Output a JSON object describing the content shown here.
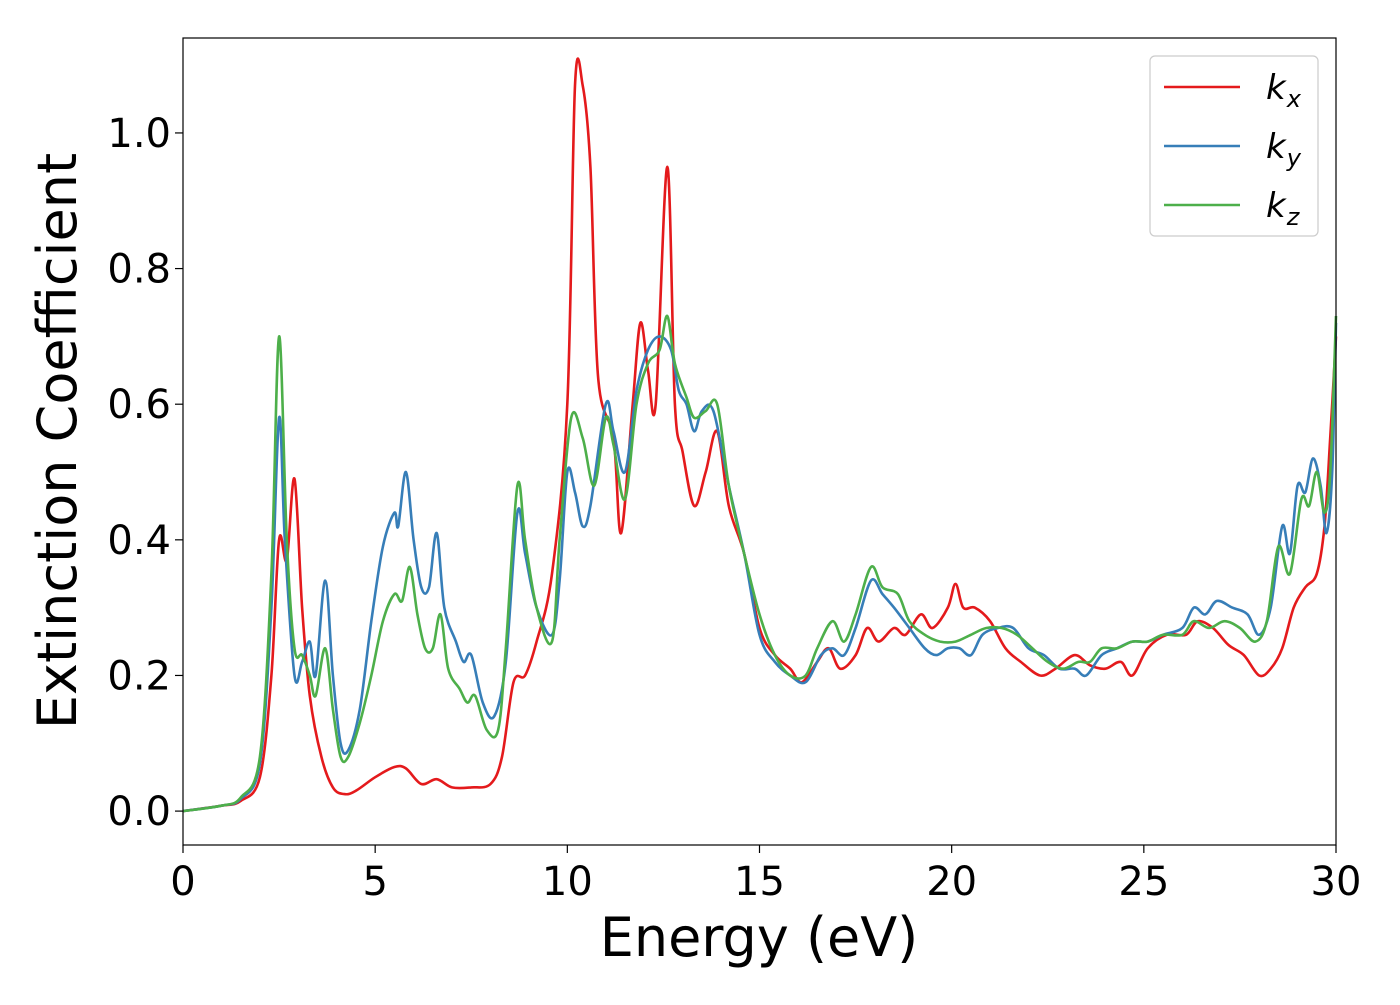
{
  "chart_data": {
    "type": "line",
    "title": "",
    "xlabel": "Energy (eV)",
    "ylabel": "Extinction Coefficient",
    "xlim": [
      0,
      30
    ],
    "ylim": [
      -0.05,
      1.14
    ],
    "xticks": [
      0,
      5,
      10,
      15,
      20,
      25,
      30
    ],
    "xtick_labels": [
      "0",
      "5",
      "10",
      "15",
      "20",
      "25",
      "30"
    ],
    "yticks": [
      0.0,
      0.2,
      0.4,
      0.6,
      0.8,
      1.0
    ],
    "ytick_labels": [
      "0.0",
      "0.2",
      "0.4",
      "0.6",
      "0.8",
      "1.0"
    ],
    "grid": false,
    "legend_position": "top-right",
    "series": [
      {
        "name": "k_x",
        "label_base": "k",
        "label_sub": "x",
        "color": "#e41a1c",
        "points": [
          [
            0,
            0
          ],
          [
            1,
            0.008
          ],
          [
            1.5,
            0.015
          ],
          [
            2,
            0.05
          ],
          [
            2.3,
            0.2
          ],
          [
            2.5,
            0.4
          ],
          [
            2.7,
            0.37
          ],
          [
            2.9,
            0.49
          ],
          [
            3.1,
            0.3
          ],
          [
            3.3,
            0.17
          ],
          [
            3.6,
            0.08
          ],
          [
            3.9,
            0.035
          ],
          [
            4.2,
            0.025
          ],
          [
            4.5,
            0.03
          ],
          [
            5,
            0.05
          ],
          [
            5.5,
            0.065
          ],
          [
            5.8,
            0.063
          ],
          [
            6.2,
            0.04
          ],
          [
            6.6,
            0.047
          ],
          [
            7,
            0.035
          ],
          [
            7.5,
            0.035
          ],
          [
            8,
            0.04
          ],
          [
            8.3,
            0.08
          ],
          [
            8.6,
            0.19
          ],
          [
            8.9,
            0.2
          ],
          [
            9.2,
            0.25
          ],
          [
            9.6,
            0.35
          ],
          [
            10,
            0.6
          ],
          [
            10.2,
            1.07
          ],
          [
            10.4,
            1.07
          ],
          [
            10.6,
            0.95
          ],
          [
            10.8,
            0.64
          ],
          [
            11.2,
            0.55
          ],
          [
            11.4,
            0.41
          ],
          [
            11.7,
            0.6
          ],
          [
            11.9,
            0.72
          ],
          [
            12.1,
            0.65
          ],
          [
            12.3,
            0.6
          ],
          [
            12.6,
            0.95
          ],
          [
            12.8,
            0.6
          ],
          [
            13,
            0.53
          ],
          [
            13.3,
            0.45
          ],
          [
            13.6,
            0.5
          ],
          [
            13.9,
            0.56
          ],
          [
            14.2,
            0.45
          ],
          [
            14.6,
            0.38
          ],
          [
            15,
            0.27
          ],
          [
            15.4,
            0.23
          ],
          [
            15.8,
            0.21
          ],
          [
            16.1,
            0.19
          ],
          [
            16.5,
            0.22
          ],
          [
            16.8,
            0.24
          ],
          [
            17.1,
            0.21
          ],
          [
            17.5,
            0.23
          ],
          [
            17.8,
            0.27
          ],
          [
            18.1,
            0.25
          ],
          [
            18.5,
            0.27
          ],
          [
            18.8,
            0.26
          ],
          [
            19.2,
            0.29
          ],
          [
            19.5,
            0.27
          ],
          [
            19.9,
            0.3
          ],
          [
            20.1,
            0.335
          ],
          [
            20.3,
            0.3
          ],
          [
            20.6,
            0.3
          ],
          [
            21,
            0.28
          ],
          [
            21.4,
            0.24
          ],
          [
            21.8,
            0.22
          ],
          [
            22.3,
            0.2
          ],
          [
            22.7,
            0.21
          ],
          [
            23.2,
            0.23
          ],
          [
            23.6,
            0.215
          ],
          [
            24,
            0.21
          ],
          [
            24.4,
            0.22
          ],
          [
            24.7,
            0.2
          ],
          [
            25.1,
            0.24
          ],
          [
            25.6,
            0.26
          ],
          [
            26.1,
            0.26
          ],
          [
            26.4,
            0.28
          ],
          [
            26.8,
            0.27
          ],
          [
            27.2,
            0.245
          ],
          [
            27.6,
            0.23
          ],
          [
            28,
            0.2
          ],
          [
            28.3,
            0.21
          ],
          [
            28.6,
            0.24
          ],
          [
            28.9,
            0.3
          ],
          [
            29.2,
            0.33
          ],
          [
            29.5,
            0.35
          ],
          [
            29.7,
            0.42
          ],
          [
            29.85,
            0.55
          ],
          [
            30,
            0.7
          ]
        ]
      },
      {
        "name": "k_y",
        "label_base": "k",
        "label_sub": "y",
        "color": "#377eb8",
        "points": [
          [
            0,
            0
          ],
          [
            1,
            0.008
          ],
          [
            1.5,
            0.018
          ],
          [
            2,
            0.07
          ],
          [
            2.3,
            0.3
          ],
          [
            2.5,
            0.58
          ],
          [
            2.65,
            0.4
          ],
          [
            2.9,
            0.2
          ],
          [
            3.1,
            0.22
          ],
          [
            3.3,
            0.25
          ],
          [
            3.45,
            0.2
          ],
          [
            3.7,
            0.34
          ],
          [
            3.9,
            0.2
          ],
          [
            4.1,
            0.1
          ],
          [
            4.3,
            0.09
          ],
          [
            4.6,
            0.15
          ],
          [
            4.9,
            0.28
          ],
          [
            5.2,
            0.39
          ],
          [
            5.5,
            0.44
          ],
          [
            5.6,
            0.42
          ],
          [
            5.8,
            0.5
          ],
          [
            6,
            0.4
          ],
          [
            6.2,
            0.33
          ],
          [
            6.4,
            0.33
          ],
          [
            6.6,
            0.41
          ],
          [
            6.8,
            0.3
          ],
          [
            7.1,
            0.25
          ],
          [
            7.3,
            0.22
          ],
          [
            7.5,
            0.23
          ],
          [
            7.8,
            0.16
          ],
          [
            8.1,
            0.14
          ],
          [
            8.4,
            0.22
          ],
          [
            8.7,
            0.44
          ],
          [
            8.9,
            0.38
          ],
          [
            9.2,
            0.3
          ],
          [
            9.6,
            0.26
          ],
          [
            9.8,
            0.34
          ],
          [
            10,
            0.5
          ],
          [
            10.2,
            0.47
          ],
          [
            10.4,
            0.42
          ],
          [
            10.6,
            0.45
          ],
          [
            11,
            0.6
          ],
          [
            11.2,
            0.56
          ],
          [
            11.5,
            0.5
          ],
          [
            11.8,
            0.62
          ],
          [
            12.1,
            0.68
          ],
          [
            12.4,
            0.7
          ],
          [
            12.7,
            0.68
          ],
          [
            12.9,
            0.62
          ],
          [
            13.1,
            0.6
          ],
          [
            13.3,
            0.56
          ],
          [
            13.5,
            0.59
          ],
          [
            13.8,
            0.59
          ],
          [
            14.2,
            0.48
          ],
          [
            14.6,
            0.38
          ],
          [
            15,
            0.26
          ],
          [
            15.4,
            0.22
          ],
          [
            15.8,
            0.2
          ],
          [
            16.2,
            0.19
          ],
          [
            16.6,
            0.23
          ],
          [
            16.9,
            0.24
          ],
          [
            17.2,
            0.23
          ],
          [
            17.5,
            0.27
          ],
          [
            17.9,
            0.34
          ],
          [
            18.2,
            0.32
          ],
          [
            18.5,
            0.3
          ],
          [
            18.9,
            0.27
          ],
          [
            19.3,
            0.24
          ],
          [
            19.6,
            0.23
          ],
          [
            19.9,
            0.24
          ],
          [
            20.2,
            0.24
          ],
          [
            20.5,
            0.23
          ],
          [
            20.8,
            0.26
          ],
          [
            21.2,
            0.27
          ],
          [
            21.6,
            0.27
          ],
          [
            22,
            0.24
          ],
          [
            22.4,
            0.23
          ],
          [
            22.8,
            0.21
          ],
          [
            23.2,
            0.21
          ],
          [
            23.5,
            0.2
          ],
          [
            23.9,
            0.23
          ],
          [
            24.3,
            0.24
          ],
          [
            24.7,
            0.25
          ],
          [
            25.1,
            0.25
          ],
          [
            25.5,
            0.26
          ],
          [
            26,
            0.27
          ],
          [
            26.3,
            0.3
          ],
          [
            26.6,
            0.29
          ],
          [
            26.9,
            0.31
          ],
          [
            27.3,
            0.3
          ],
          [
            27.7,
            0.29
          ],
          [
            28,
            0.26
          ],
          [
            28.3,
            0.3
          ],
          [
            28.6,
            0.42
          ],
          [
            28.8,
            0.38
          ],
          [
            29,
            0.48
          ],
          [
            29.2,
            0.47
          ],
          [
            29.4,
            0.52
          ],
          [
            29.6,
            0.48
          ],
          [
            29.75,
            0.41
          ],
          [
            29.9,
            0.5
          ],
          [
            30,
            0.72
          ]
        ]
      },
      {
        "name": "k_z",
        "label_base": "k",
        "label_sub": "z",
        "color": "#4daf4a",
        "points": [
          [
            0,
            0
          ],
          [
            1,
            0.008
          ],
          [
            1.5,
            0.02
          ],
          [
            2,
            0.08
          ],
          [
            2.3,
            0.35
          ],
          [
            2.5,
            0.7
          ],
          [
            2.7,
            0.4
          ],
          [
            2.9,
            0.24
          ],
          [
            3.1,
            0.23
          ],
          [
            3.3,
            0.2
          ],
          [
            3.45,
            0.17
          ],
          [
            3.7,
            0.24
          ],
          [
            3.9,
            0.15
          ],
          [
            4.1,
            0.08
          ],
          [
            4.3,
            0.08
          ],
          [
            4.6,
            0.13
          ],
          [
            4.9,
            0.2
          ],
          [
            5.2,
            0.28
          ],
          [
            5.5,
            0.32
          ],
          [
            5.7,
            0.31
          ],
          [
            5.9,
            0.36
          ],
          [
            6.1,
            0.29
          ],
          [
            6.3,
            0.24
          ],
          [
            6.5,
            0.24
          ],
          [
            6.7,
            0.29
          ],
          [
            6.9,
            0.21
          ],
          [
            7.2,
            0.18
          ],
          [
            7.4,
            0.16
          ],
          [
            7.6,
            0.17
          ],
          [
            7.9,
            0.12
          ],
          [
            8.2,
            0.12
          ],
          [
            8.4,
            0.24
          ],
          [
            8.7,
            0.48
          ],
          [
            8.9,
            0.4
          ],
          [
            9.2,
            0.3
          ],
          [
            9.6,
            0.25
          ],
          [
            9.8,
            0.4
          ],
          [
            10.1,
            0.58
          ],
          [
            10.4,
            0.55
          ],
          [
            10.7,
            0.48
          ],
          [
            11,
            0.58
          ],
          [
            11.2,
            0.54
          ],
          [
            11.5,
            0.46
          ],
          [
            11.8,
            0.6
          ],
          [
            12.1,
            0.66
          ],
          [
            12.4,
            0.68
          ],
          [
            12.6,
            0.73
          ],
          [
            12.8,
            0.66
          ],
          [
            13.1,
            0.61
          ],
          [
            13.3,
            0.58
          ],
          [
            13.6,
            0.59
          ],
          [
            13.9,
            0.6
          ],
          [
            14.2,
            0.48
          ],
          [
            14.6,
            0.38
          ],
          [
            15,
            0.29
          ],
          [
            15.4,
            0.23
          ],
          [
            15.8,
            0.2
          ],
          [
            16.2,
            0.2
          ],
          [
            16.5,
            0.24
          ],
          [
            16.9,
            0.28
          ],
          [
            17.2,
            0.25
          ],
          [
            17.5,
            0.29
          ],
          [
            17.9,
            0.36
          ],
          [
            18.2,
            0.33
          ],
          [
            18.6,
            0.32
          ],
          [
            18.9,
            0.28
          ],
          [
            19.3,
            0.26
          ],
          [
            19.7,
            0.25
          ],
          [
            20.1,
            0.25
          ],
          [
            20.5,
            0.26
          ],
          [
            20.9,
            0.27
          ],
          [
            21.3,
            0.27
          ],
          [
            21.7,
            0.26
          ],
          [
            22.1,
            0.24
          ],
          [
            22.5,
            0.22
          ],
          [
            22.9,
            0.21
          ],
          [
            23.3,
            0.22
          ],
          [
            23.6,
            0.22
          ],
          [
            23.9,
            0.24
          ],
          [
            24.3,
            0.24
          ],
          [
            24.7,
            0.25
          ],
          [
            25.1,
            0.25
          ],
          [
            25.5,
            0.26
          ],
          [
            26,
            0.26
          ],
          [
            26.3,
            0.28
          ],
          [
            26.7,
            0.27
          ],
          [
            27.1,
            0.28
          ],
          [
            27.5,
            0.27
          ],
          [
            27.9,
            0.25
          ],
          [
            28.2,
            0.28
          ],
          [
            28.5,
            0.39
          ],
          [
            28.8,
            0.35
          ],
          [
            29.1,
            0.46
          ],
          [
            29.3,
            0.45
          ],
          [
            29.5,
            0.5
          ],
          [
            29.7,
            0.44
          ],
          [
            29.85,
            0.5
          ],
          [
            30,
            0.73
          ]
        ]
      }
    ]
  }
}
